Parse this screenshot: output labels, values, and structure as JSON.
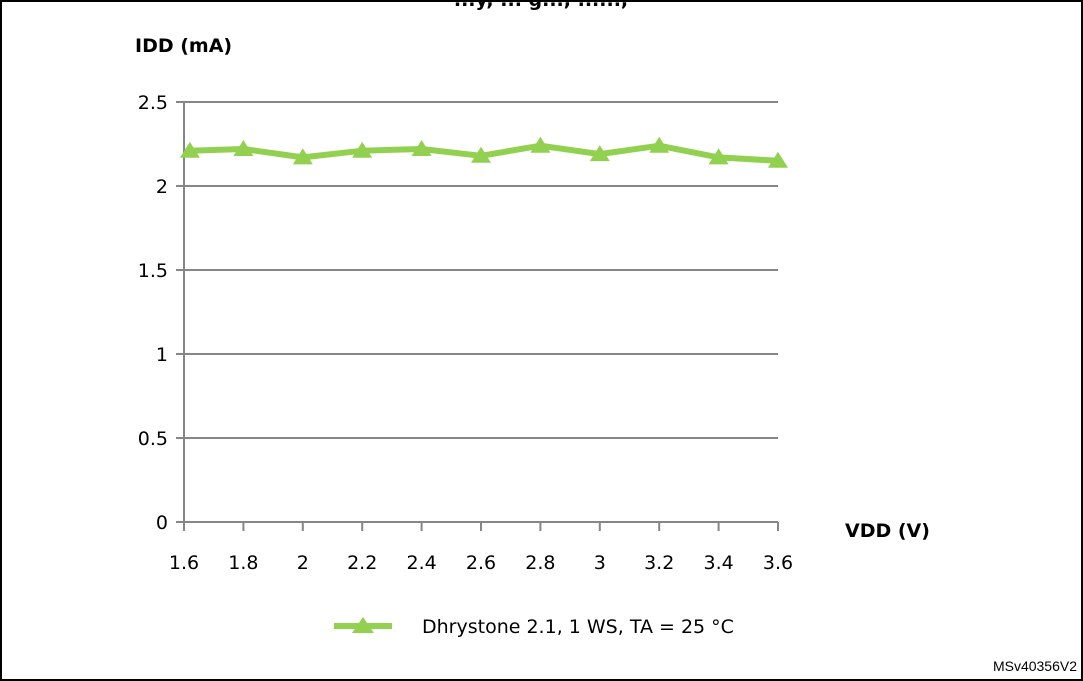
{
  "top_caption": "...y, ... g..., ......,",
  "chart_data": {
    "type": "line",
    "ylabel": "IDD (mA)",
    "xlabel": "VDD (V)",
    "ylim": [
      0,
      2.5
    ],
    "xlim": [
      1.6,
      3.6
    ],
    "yticks": [
      "0",
      "0.5",
      "1",
      "1.5",
      "2",
      "2.5"
    ],
    "xticks": [
      "1.6",
      "1.8",
      "2",
      "2.2",
      "2.4",
      "2.6",
      "2.8",
      "3",
      "3.2",
      "3.4",
      "3.6"
    ],
    "grid": true,
    "legend_position": "bottom-center",
    "series": [
      {
        "name": "Dhrystone 2.1, 1 WS, TA = 25 °C",
        "color": "#92d050",
        "marker": "triangle",
        "x": [
          1.62,
          1.8,
          2.0,
          2.2,
          2.4,
          2.6,
          2.8,
          3.0,
          3.2,
          3.4,
          3.6
        ],
        "y": [
          2.21,
          2.22,
          2.17,
          2.21,
          2.22,
          2.18,
          2.24,
          2.19,
          2.24,
          2.17,
          2.15
        ]
      }
    ]
  },
  "figure_id": "MSv40356V2"
}
